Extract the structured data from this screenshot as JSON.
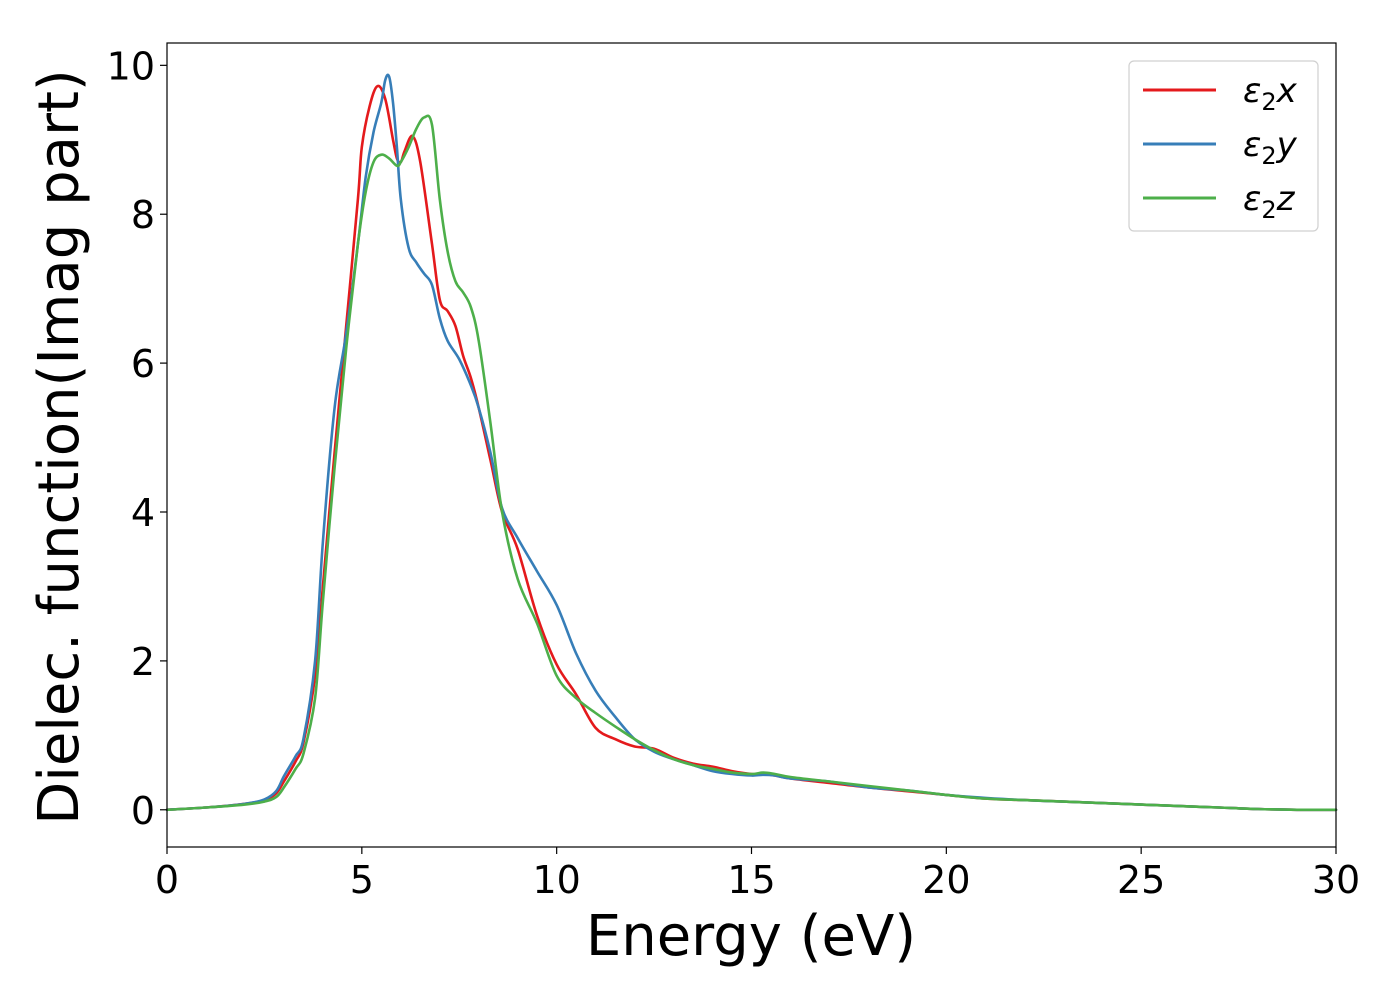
{
  "chart_data": {
    "type": "line",
    "title": "",
    "xlabel": "Energy (eV)",
    "ylabel": "Dielec. function(Imag part)",
    "xlim": [
      0,
      30
    ],
    "ylim": [
      -0.5,
      10.3
    ],
    "xticks": [
      0,
      5,
      10,
      15,
      20,
      25,
      30
    ],
    "xtick_labels": [
      "0",
      "5",
      "10",
      "15",
      "20",
      "25",
      "30"
    ],
    "yticks": [
      0,
      2,
      4,
      6,
      8,
      10
    ],
    "ytick_labels": [
      "0",
      "2",
      "4",
      "6",
      "8",
      "10"
    ],
    "grid": false,
    "legend": {
      "position": "top-right"
    },
    "series": [
      {
        "name": "ε₂x",
        "legend_base": "ε",
        "legend_sub": "2",
        "legend_suffix": "x",
        "color": "#e41a1c",
        "x": [
          0,
          1,
          2,
          2.5,
          2.8,
          3.0,
          3.3,
          3.5,
          3.8,
          4.0,
          4.3,
          4.6,
          4.9,
          5.0,
          5.2,
          5.4,
          5.6,
          5.8,
          5.9,
          6.0,
          6.1,
          6.3,
          6.5,
          6.8,
          7.0,
          7.2,
          7.4,
          7.6,
          7.8,
          8.0,
          8.3,
          8.6,
          9.0,
          9.5,
          10.0,
          10.5,
          11.0,
          11.5,
          12.0,
          12.5,
          13.0,
          13.5,
          14.0,
          14.5,
          15.0,
          15.3,
          15.6,
          16.0,
          17.0,
          18.0,
          19.0,
          20.0,
          21.0,
          22.0,
          23.0,
          24.0,
          25.0,
          26.0,
          27.0,
          28.0,
          29.0,
          30.0
        ],
        "y": [
          0,
          0.03,
          0.08,
          0.13,
          0.22,
          0.38,
          0.65,
          0.9,
          1.8,
          3.0,
          4.8,
          6.5,
          8.2,
          8.9,
          9.45,
          9.72,
          9.55,
          9.0,
          8.75,
          8.7,
          8.85,
          9.05,
          8.7,
          7.6,
          6.85,
          6.7,
          6.5,
          6.1,
          5.8,
          5.4,
          4.7,
          4.0,
          3.5,
          2.6,
          1.95,
          1.55,
          1.1,
          0.95,
          0.85,
          0.82,
          0.7,
          0.62,
          0.58,
          0.52,
          0.48,
          0.48,
          0.46,
          0.42,
          0.36,
          0.3,
          0.25,
          0.2,
          0.15,
          0.13,
          0.11,
          0.09,
          0.07,
          0.05,
          0.03,
          0.01,
          0.0,
          0.0
        ]
      },
      {
        "name": "ε₂y",
        "legend_base": "ε",
        "legend_sub": "2",
        "legend_suffix": "y",
        "color": "#377eb8",
        "x": [
          0,
          1,
          2,
          2.5,
          2.8,
          3.0,
          3.3,
          3.5,
          3.8,
          4.0,
          4.3,
          4.6,
          4.9,
          5.1,
          5.3,
          5.5,
          5.6,
          5.7,
          5.8,
          5.9,
          6.0,
          6.2,
          6.4,
          6.6,
          6.8,
          7.0,
          7.2,
          7.5,
          7.8,
          8.0,
          8.3,
          8.6,
          9.0,
          9.5,
          10.0,
          10.5,
          11.0,
          11.5,
          12.0,
          12.5,
          13.0,
          13.5,
          14.0,
          14.5,
          15.0,
          15.3,
          15.6,
          16.0,
          17.0,
          18.0,
          19.0,
          20.0,
          21.0,
          22.0,
          23.0,
          24.0,
          25.0,
          26.0,
          27.0,
          28.0,
          29.0,
          30.0
        ],
        "y": [
          0,
          0.03,
          0.08,
          0.14,
          0.25,
          0.45,
          0.72,
          0.95,
          2.0,
          3.6,
          5.4,
          6.4,
          7.6,
          8.5,
          9.1,
          9.5,
          9.8,
          9.85,
          9.5,
          8.9,
          8.2,
          7.55,
          7.35,
          7.2,
          7.05,
          6.6,
          6.3,
          6.05,
          5.7,
          5.4,
          4.8,
          4.05,
          3.65,
          3.2,
          2.75,
          2.1,
          1.6,
          1.25,
          0.95,
          0.78,
          0.68,
          0.6,
          0.52,
          0.48,
          0.46,
          0.47,
          0.46,
          0.42,
          0.38,
          0.3,
          0.26,
          0.2,
          0.16,
          0.13,
          0.11,
          0.09,
          0.07,
          0.05,
          0.03,
          0.01,
          0.0,
          0.0
        ]
      },
      {
        "name": "ε₂z",
        "legend_base": "ε",
        "legend_sub": "2",
        "legend_suffix": "z",
        "color": "#4daf4a",
        "x": [
          0,
          1,
          2,
          2.5,
          2.8,
          3.0,
          3.3,
          3.5,
          3.8,
          4.0,
          4.3,
          4.6,
          4.9,
          5.1,
          5.3,
          5.5,
          5.7,
          5.9,
          6.0,
          6.2,
          6.4,
          6.6,
          6.8,
          7.0,
          7.2,
          7.4,
          7.6,
          7.8,
          8.0,
          8.3,
          8.6,
          9.0,
          9.5,
          10.0,
          10.5,
          11.0,
          11.5,
          12.0,
          12.5,
          13.0,
          13.5,
          14.0,
          14.5,
          15.0,
          15.3,
          15.6,
          16.0,
          17.0,
          18.0,
          19.0,
          20.0,
          21.0,
          22.0,
          23.0,
          24.0,
          25.0,
          26.0,
          27.0,
          28.0,
          29.0,
          30.0
        ],
        "y": [
          0,
          0.03,
          0.07,
          0.11,
          0.17,
          0.3,
          0.55,
          0.75,
          1.5,
          2.8,
          4.6,
          6.2,
          7.6,
          8.3,
          8.7,
          8.8,
          8.75,
          8.65,
          8.7,
          8.9,
          9.15,
          9.3,
          9.2,
          8.2,
          7.5,
          7.1,
          6.95,
          6.75,
          6.3,
          5.2,
          4.0,
          3.1,
          2.5,
          1.8,
          1.5,
          1.3,
          1.12,
          0.95,
          0.8,
          0.68,
          0.6,
          0.55,
          0.5,
          0.48,
          0.5,
          0.48,
          0.44,
          0.38,
          0.32,
          0.26,
          0.2,
          0.15,
          0.13,
          0.11,
          0.09,
          0.07,
          0.05,
          0.03,
          0.01,
          0.0,
          0.0
        ]
      }
    ]
  }
}
